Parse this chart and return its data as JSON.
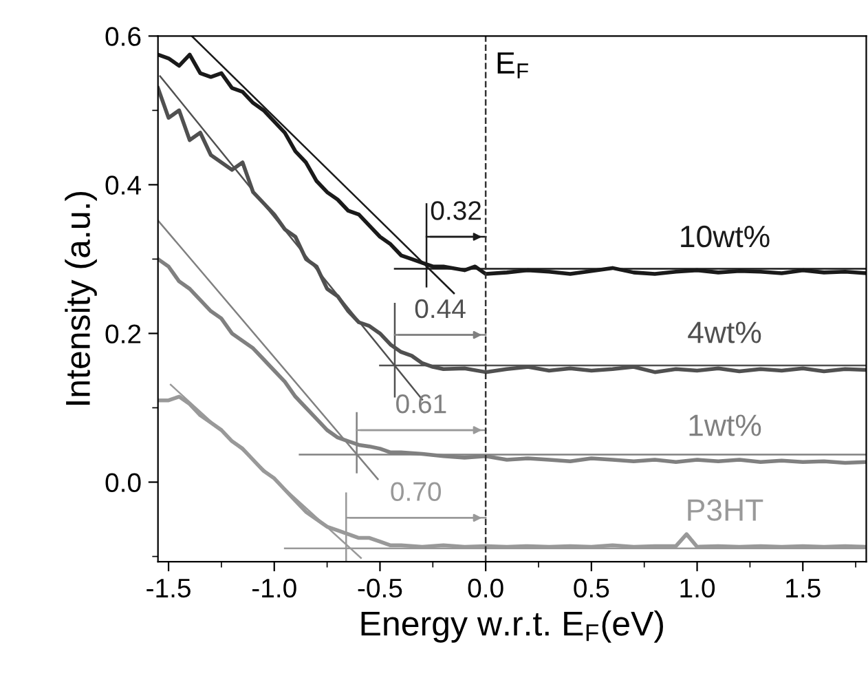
{
  "chart_data": {
    "type": "line",
    "xlabel": "Energy w.r.t. E$_{F}$(eV)",
    "ylabel": "Intensity (a.u.)",
    "xlim": [
      -1.55,
      1.8
    ],
    "ylim": [
      -0.107,
      0.6
    ],
    "xticks": [
      -1.5,
      {
        "value": -1,
        "label": "-1.0"
      },
      -0.5,
      {
        "value": 0,
        "label": "0.0"
      },
      0.5,
      {
        "value": 1,
        "label": "1.0"
      },
      1.5
    ],
    "yticks": [
      {
        "value": 0,
        "label": "0.0"
      },
      0.2,
      0.4,
      0.6
    ],
    "grid": false,
    "legend": false,
    "marker": "none",
    "line_style": "solid",
    "ref_lines": [
      {
        "axis": "x",
        "value": 0,
        "label": "E$_{F}$",
        "color": "#333333",
        "line_style": "dashed"
      }
    ],
    "annotations": [
      "0.32",
      "0.44",
      "0.61",
      "0.70"
    ],
    "series": [
      {
        "name": "10wt%",
        "color": "#1a1a1a",
        "x": [
          -1.55,
          -1.5,
          -1.45,
          -1.4,
          -1.35,
          -1.3,
          -1.25,
          -1.2,
          -1.15,
          -1.1,
          -1.05,
          -1.0,
          -0.95,
          -0.9,
          -0.85,
          -0.8,
          -0.75,
          -0.7,
          -0.65,
          -0.6,
          -0.55,
          -0.5,
          -0.45,
          -0.4,
          -0.35,
          -0.3,
          -0.25,
          -0.2,
          -0.1,
          -0.05,
          0.0,
          0.1,
          0.2,
          0.3,
          0.4,
          0.5,
          0.6,
          0.7,
          0.8,
          0.9,
          1.0,
          1.1,
          1.2,
          1.3,
          1.4,
          1.5,
          1.6,
          1.7,
          1.8
        ],
        "values": [
          0.575,
          0.57,
          0.56,
          0.575,
          0.55,
          0.545,
          0.55,
          0.53,
          0.525,
          0.51,
          0.5,
          0.485,
          0.47,
          0.445,
          0.43,
          0.405,
          0.39,
          0.38,
          0.365,
          0.36,
          0.345,
          0.33,
          0.32,
          0.305,
          0.3,
          0.295,
          0.29,
          0.29,
          0.285,
          0.29,
          0.28,
          0.282,
          0.285,
          0.283,
          0.28,
          0.284,
          0.288,
          0.282,
          0.28,
          0.283,
          0.285,
          0.282,
          0.284,
          0.283,
          0.281,
          0.285,
          0.282,
          0.283,
          0.281
        ]
      },
      {
        "name": "4wt%",
        "color": "#505050",
        "x": [
          -1.55,
          -1.5,
          -1.45,
          -1.4,
          -1.35,
          -1.3,
          -1.25,
          -1.2,
          -1.15,
          -1.1,
          -1.05,
          -1.0,
          -0.95,
          -0.9,
          -0.85,
          -0.8,
          -0.75,
          -0.7,
          -0.65,
          -0.6,
          -0.55,
          -0.5,
          -0.45,
          -0.4,
          -0.35,
          -0.3,
          -0.25,
          -0.2,
          -0.1,
          0.0,
          0.1,
          0.2,
          0.3,
          0.4,
          0.5,
          0.6,
          0.7,
          0.8,
          0.9,
          1.0,
          1.1,
          1.2,
          1.3,
          1.4,
          1.5,
          1.6,
          1.7,
          1.8
        ],
        "values": [
          0.53,
          0.49,
          0.5,
          0.46,
          0.47,
          0.44,
          0.43,
          0.42,
          0.43,
          0.39,
          0.375,
          0.36,
          0.34,
          0.33,
          0.3,
          0.29,
          0.26,
          0.25,
          0.23,
          0.215,
          0.21,
          0.2,
          0.185,
          0.175,
          0.17,
          0.16,
          0.155,
          0.152,
          0.153,
          0.148,
          0.152,
          0.155,
          0.15,
          0.153,
          0.15,
          0.152,
          0.155,
          0.148,
          0.152,
          0.15,
          0.153,
          0.149,
          0.152,
          0.15,
          0.153,
          0.149,
          0.152,
          0.151
        ]
      },
      {
        "name": "1wt%",
        "color": "#808080",
        "x": [
          -1.55,
          -1.5,
          -1.45,
          -1.4,
          -1.35,
          -1.3,
          -1.25,
          -1.2,
          -1.15,
          -1.1,
          -1.05,
          -1.0,
          -0.95,
          -0.9,
          -0.85,
          -0.8,
          -0.75,
          -0.7,
          -0.65,
          -0.6,
          -0.55,
          -0.5,
          -0.45,
          -0.4,
          -0.3,
          -0.2,
          -0.1,
          0.0,
          0.1,
          0.2,
          0.3,
          0.4,
          0.5,
          0.6,
          0.7,
          0.8,
          0.9,
          1.0,
          1.1,
          1.2,
          1.3,
          1.4,
          1.5,
          1.6,
          1.7,
          1.8
        ],
        "values": [
          0.3,
          0.29,
          0.27,
          0.26,
          0.245,
          0.23,
          0.22,
          0.2,
          0.19,
          0.18,
          0.165,
          0.15,
          0.135,
          0.115,
          0.1,
          0.085,
          0.07,
          0.06,
          0.055,
          0.05,
          0.048,
          0.045,
          0.04,
          0.04,
          0.038,
          0.035,
          0.033,
          0.035,
          0.03,
          0.032,
          0.03,
          0.028,
          0.032,
          0.03,
          0.028,
          0.03,
          0.027,
          0.03,
          0.028,
          0.03,
          0.027,
          0.029,
          0.027,
          0.028,
          0.026,
          0.027
        ]
      },
      {
        "name": "P3HT",
        "color": "#999999",
        "x": [
          -1.55,
          -1.5,
          -1.45,
          -1.4,
          -1.35,
          -1.3,
          -1.25,
          -1.2,
          -1.15,
          -1.1,
          -1.05,
          -1.0,
          -0.95,
          -0.9,
          -0.85,
          -0.8,
          -0.75,
          -0.7,
          -0.65,
          -0.6,
          -0.55,
          -0.5,
          -0.45,
          -0.4,
          -0.3,
          -0.2,
          -0.1,
          0.0,
          0.1,
          0.2,
          0.3,
          0.4,
          0.5,
          0.6,
          0.7,
          0.8,
          0.9,
          0.95,
          1.0,
          1.1,
          1.2,
          1.3,
          1.4,
          1.5,
          1.6,
          1.7,
          1.8
        ],
        "values": [
          0.11,
          0.11,
          0.115,
          0.105,
          0.09,
          0.08,
          0.07,
          0.055,
          0.045,
          0.03,
          0.015,
          0.005,
          -0.01,
          -0.025,
          -0.04,
          -0.05,
          -0.06,
          -0.065,
          -0.07,
          -0.075,
          -0.075,
          -0.08,
          -0.085,
          -0.085,
          -0.087,
          -0.085,
          -0.087,
          -0.086,
          -0.087,
          -0.086,
          -0.087,
          -0.086,
          -0.087,
          -0.085,
          -0.087,
          -0.086,
          -0.086,
          -0.07,
          -0.087,
          -0.086,
          -0.087,
          -0.086,
          -0.087,
          -0.086,
          -0.087,
          -0.086,
          -0.087
        ]
      },
      {
        "color": "#1a1a1a",
        "x": [
          -1.39,
          -0.15
        ],
        "values": [
          0.6,
          0.254
        ]
      },
      {
        "color": "#1a1a1a",
        "x": [
          -0.43,
          1.8
        ],
        "values": [
          0.287,
          0.287
        ]
      },
      {
        "color": "#1a1a1a",
        "x": [
          -0.28,
          -0.28
        ],
        "values": [
          0.374,
          0.263
        ]
      },
      {
        "color": "#1a1a1a",
        "x": [
          -0.28,
          0.0
        ],
        "values": [
          0.33,
          0.33
        ]
      },
      {
        "color": "#505050",
        "x": [
          -1.54,
          -0.3
        ],
        "values": [
          0.546,
          0.111
        ]
      },
      {
        "color": "#505050",
        "x": [
          -0.5,
          1.8
        ],
        "values": [
          0.157,
          0.157
        ]
      },
      {
        "color": "#505050",
        "x": [
          -0.43,
          -0.43
        ],
        "values": [
          0.24,
          0.115
        ]
      },
      {
        "color": "#808080",
        "x": [
          -0.43,
          0.0
        ],
        "values": [
          0.198,
          0.198
        ]
      },
      {
        "color": "#808080",
        "x": [
          -1.55,
          -0.51
        ],
        "values": [
          0.352,
          0.004
        ]
      },
      {
        "color": "#808080",
        "x": [
          -0.88,
          1.8
        ],
        "values": [
          0.037,
          0.037
        ]
      },
      {
        "color": "#808080",
        "x": [
          -0.61,
          -0.61
        ],
        "values": [
          0.093,
          0.013
        ]
      },
      {
        "color": "#999999",
        "x": [
          -0.61,
          0.0
        ],
        "values": [
          0.07,
          0.07
        ]
      },
      {
        "color": "#999999",
        "x": [
          -1.49,
          -0.59
        ],
        "values": [
          0.131,
          -0.102
        ]
      },
      {
        "color": "#999999",
        "x": [
          -0.95,
          1.8
        ],
        "values": [
          -0.089,
          -0.089
        ]
      },
      {
        "color": "#999999",
        "x": [
          -0.66,
          -0.66
        ],
        "values": [
          -0.015,
          -0.107
        ]
      },
      {
        "color": "#999999",
        "x": [
          -0.66,
          0.0
        ],
        "values": [
          -0.048,
          -0.048
        ]
      }
    ]
  }
}
